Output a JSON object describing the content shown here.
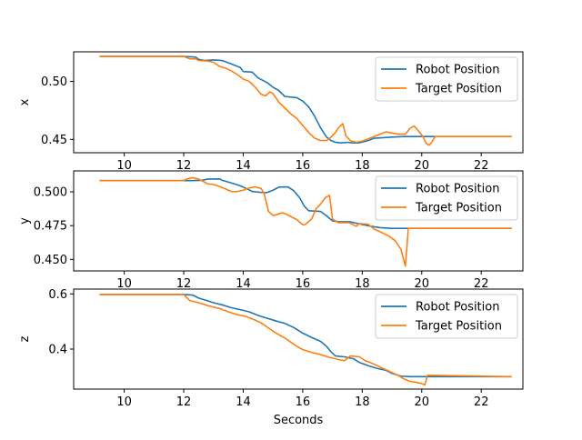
{
  "chart_data": [
    {
      "type": "line",
      "ylabel": "x",
      "xlabel": "",
      "xlim": [
        8.3,
        23.4
      ],
      "ylim": [
        0.4385,
        0.5255
      ],
      "xticks": [
        10,
        12,
        14,
        16,
        18,
        20,
        22
      ],
      "xtick_labels": [
        "10",
        "12",
        "14",
        "16",
        "18",
        "20",
        "22"
      ],
      "yticks": [
        0.45,
        0.5
      ],
      "ytick_labels": [
        "0.45",
        "0.50"
      ],
      "legend_position": "top-right",
      "series": [
        {
          "name": "Robot Position",
          "color": "#1f77b4",
          "points": [
            [
              9.2,
              0.5215
            ],
            [
              12.0,
              0.5215
            ],
            [
              12.4,
              0.521
            ],
            [
              12.5,
              0.519
            ],
            [
              12.7,
              0.518
            ],
            [
              13.0,
              0.5185
            ],
            [
              13.3,
              0.518
            ],
            [
              13.6,
              0.515
            ],
            [
              13.9,
              0.512
            ],
            [
              14.0,
              0.5085
            ],
            [
              14.3,
              0.508
            ],
            [
              14.5,
              0.503
            ],
            [
              14.8,
              0.499
            ],
            [
              15.0,
              0.495
            ],
            [
              15.2,
              0.492
            ],
            [
              15.4,
              0.487
            ],
            [
              15.8,
              0.486
            ],
            [
              16.0,
              0.483
            ],
            [
              16.2,
              0.478
            ],
            [
              16.4,
              0.47
            ],
            [
              16.6,
              0.46
            ],
            [
              16.8,
              0.452
            ],
            [
              16.95,
              0.449
            ],
            [
              17.1,
              0.4475
            ],
            [
              17.3,
              0.447
            ],
            [
              17.5,
              0.4475
            ],
            [
              17.7,
              0.447
            ],
            [
              17.9,
              0.447
            ],
            [
              18.2,
              0.449
            ],
            [
              18.4,
              0.451
            ],
            [
              18.7,
              0.4515
            ],
            [
              19.0,
              0.452
            ],
            [
              19.4,
              0.4525
            ],
            [
              23.0,
              0.4525
            ]
          ]
        },
        {
          "name": "Target Position",
          "color": "#ff7f0e",
          "points": [
            [
              9.2,
              0.5215
            ],
            [
              12.0,
              0.5215
            ],
            [
              12.2,
              0.5195
            ],
            [
              12.4,
              0.5195
            ],
            [
              12.5,
              0.518
            ],
            [
              12.8,
              0.5175
            ],
            [
              13.0,
              0.5165
            ],
            [
              13.2,
              0.513
            ],
            [
              13.4,
              0.5115
            ],
            [
              13.6,
              0.509
            ],
            [
              13.8,
              0.506
            ],
            [
              14.0,
              0.502
            ],
            [
              14.2,
              0.5
            ],
            [
              14.4,
              0.495
            ],
            [
              14.6,
              0.489
            ],
            [
              14.75,
              0.4875
            ],
            [
              14.9,
              0.491
            ],
            [
              15.0,
              0.4895
            ],
            [
              15.2,
              0.482
            ],
            [
              15.4,
              0.477
            ],
            [
              15.6,
              0.472
            ],
            [
              15.8,
              0.468
            ],
            [
              16.0,
              0.462
            ],
            [
              16.2,
              0.456
            ],
            [
              16.4,
              0.451
            ],
            [
              16.6,
              0.449
            ],
            [
              16.8,
              0.449
            ],
            [
              16.95,
              0.452
            ],
            [
              17.1,
              0.456
            ],
            [
              17.2,
              0.46
            ],
            [
              17.35,
              0.4635
            ],
            [
              17.45,
              0.453
            ],
            [
              17.6,
              0.449
            ],
            [
              17.8,
              0.4475
            ],
            [
              18.0,
              0.4485
            ],
            [
              18.2,
              0.4505
            ],
            [
              18.4,
              0.4525
            ],
            [
              18.6,
              0.4545
            ],
            [
              18.8,
              0.4565
            ],
            [
              19.0,
              0.4555
            ],
            [
              19.2,
              0.4545
            ],
            [
              19.45,
              0.4545
            ],
            [
              19.6,
              0.4595
            ],
            [
              19.75,
              0.4615
            ],
            [
              19.9,
              0.457
            ],
            [
              20.05,
              0.452
            ],
            [
              20.15,
              0.4465
            ],
            [
              20.25,
              0.445
            ],
            [
              20.35,
              0.448
            ],
            [
              20.45,
              0.4525
            ],
            [
              23.0,
              0.4525
            ]
          ]
        }
      ]
    },
    {
      "type": "line",
      "ylabel": "y",
      "xlabel": "",
      "xlim": [
        8.3,
        23.4
      ],
      "ylim": [
        0.4415,
        0.5155
      ],
      "xticks": [
        10,
        12,
        14,
        16,
        18,
        20,
        22
      ],
      "xtick_labels": [
        "10",
        "12",
        "14",
        "16",
        "18",
        "20",
        "22"
      ],
      "yticks": [
        0.45,
        0.475,
        0.5
      ],
      "ytick_labels": [
        "0.450",
        "0.475",
        "0.500"
      ],
      "legend_position": "top-right",
      "series": [
        {
          "name": "Robot Position",
          "color": "#1f77b4",
          "points": [
            [
              9.2,
              0.5083
            ],
            [
              12.0,
              0.5083
            ],
            [
              12.2,
              0.5083
            ],
            [
              12.6,
              0.5085
            ],
            [
              12.8,
              0.5094
            ],
            [
              13.2,
              0.5096
            ],
            [
              13.3,
              0.5085
            ],
            [
              13.6,
              0.5066
            ],
            [
              13.9,
              0.5045
            ],
            [
              14.1,
              0.5025
            ],
            [
              14.3,
              0.5003
            ],
            [
              14.6,
              0.4996
            ],
            [
              14.8,
              0.4995
            ],
            [
              15.0,
              0.5012
            ],
            [
              15.2,
              0.5035
            ],
            [
              15.5,
              0.5037
            ],
            [
              15.7,
              0.5008
            ],
            [
              15.9,
              0.4955
            ],
            [
              16.05,
              0.4895
            ],
            [
              16.2,
              0.486
            ],
            [
              16.6,
              0.4855
            ],
            [
              16.8,
              0.4823
            ],
            [
              17.0,
              0.4785
            ],
            [
              17.2,
              0.478
            ],
            [
              17.6,
              0.4778
            ],
            [
              18.0,
              0.4758
            ],
            [
              18.3,
              0.4745
            ],
            [
              18.6,
              0.4735
            ],
            [
              19.0,
              0.473
            ],
            [
              23.0,
              0.473
            ]
          ]
        },
        {
          "name": "Target Position",
          "color": "#ff7f0e",
          "points": [
            [
              9.2,
              0.5083
            ],
            [
              12.0,
              0.5083
            ],
            [
              12.1,
              0.5095
            ],
            [
              12.3,
              0.5105
            ],
            [
              12.5,
              0.5095
            ],
            [
              12.8,
              0.506
            ],
            [
              13.0,
              0.5055
            ],
            [
              13.2,
              0.504
            ],
            [
              13.4,
              0.5022
            ],
            [
              13.6,
              0.5002
            ],
            [
              13.8,
              0.5002
            ],
            [
              14.0,
              0.5012
            ],
            [
              14.2,
              0.5029
            ],
            [
              14.4,
              0.5037
            ],
            [
              14.6,
              0.5025
            ],
            [
              14.7,
              0.499
            ],
            [
              14.85,
              0.4855
            ],
            [
              15.0,
              0.4825
            ],
            [
              15.1,
              0.483
            ],
            [
              15.3,
              0.4845
            ],
            [
              15.4,
              0.484
            ],
            [
              15.6,
              0.4817
            ],
            [
              15.8,
              0.4795
            ],
            [
              16.0,
              0.4755
            ],
            [
              16.1,
              0.476
            ],
            [
              16.3,
              0.48
            ],
            [
              16.45,
              0.4875
            ],
            [
              16.6,
              0.491
            ],
            [
              16.75,
              0.4955
            ],
            [
              16.9,
              0.4975
            ],
            [
              17.0,
              0.48
            ],
            [
              17.2,
              0.4772
            ],
            [
              17.55,
              0.4772
            ],
            [
              17.8,
              0.4745
            ],
            [
              17.9,
              0.4765
            ],
            [
              18.2,
              0.476
            ],
            [
              18.4,
              0.4725
            ],
            [
              18.6,
              0.4705
            ],
            [
              18.9,
              0.4672
            ],
            [
              19.1,
              0.464
            ],
            [
              19.3,
              0.4575
            ],
            [
              19.45,
              0.445
            ],
            [
              19.55,
              0.473
            ],
            [
              23.0,
              0.473
            ]
          ]
        }
      ]
    },
    {
      "type": "line",
      "ylabel": "z",
      "xlabel": "Seconds",
      "xlim": [
        8.3,
        23.4
      ],
      "ylim": [
        0.255,
        0.6175
      ],
      "xticks": [
        10,
        12,
        14,
        16,
        18,
        20,
        22
      ],
      "xtick_labels": [
        "10",
        "12",
        "14",
        "16",
        "18",
        "20",
        "22"
      ],
      "yticks": [
        0.4,
        0.6
      ],
      "ytick_labels": [
        "0.4",
        "0.6"
      ],
      "legend_position": "top-right",
      "series": [
        {
          "name": "Robot Position",
          "color": "#1f77b4",
          "points": [
            [
              9.2,
              0.598
            ],
            [
              12.0,
              0.598
            ],
            [
              12.3,
              0.596
            ],
            [
              12.5,
              0.585
            ],
            [
              12.8,
              0.575
            ],
            [
              13.0,
              0.568
            ],
            [
              13.3,
              0.56
            ],
            [
              13.6,
              0.55
            ],
            [
              13.9,
              0.543
            ],
            [
              14.2,
              0.535
            ],
            [
              14.5,
              0.522
            ],
            [
              14.8,
              0.512
            ],
            [
              15.1,
              0.502
            ],
            [
              15.4,
              0.493
            ],
            [
              15.7,
              0.478
            ],
            [
              16.0,
              0.458
            ],
            [
              16.3,
              0.442
            ],
            [
              16.6,
              0.428
            ],
            [
              16.8,
              0.41
            ],
            [
              16.95,
              0.39
            ],
            [
              17.1,
              0.375
            ],
            [
              17.4,
              0.372
            ],
            [
              17.7,
              0.365
            ],
            [
              17.9,
              0.352
            ],
            [
              18.2,
              0.34
            ],
            [
              18.5,
              0.33
            ],
            [
              18.8,
              0.323
            ],
            [
              19.0,
              0.312
            ],
            [
              19.3,
              0.302
            ],
            [
              19.6,
              0.3
            ],
            [
              23.0,
              0.3
            ]
          ]
        },
        {
          "name": "Target Position",
          "color": "#ff7f0e",
          "points": [
            [
              9.2,
              0.598
            ],
            [
              12.0,
              0.598
            ],
            [
              12.2,
              0.576
            ],
            [
              12.5,
              0.568
            ],
            [
              12.8,
              0.558
            ],
            [
              13.0,
              0.552
            ],
            [
              13.2,
              0.547
            ],
            [
              13.5,
              0.535
            ],
            [
              13.8,
              0.525
            ],
            [
              14.1,
              0.518
            ],
            [
              14.4,
              0.505
            ],
            [
              14.6,
              0.495
            ],
            [
              14.8,
              0.48
            ],
            [
              15.0,
              0.465
            ],
            [
              15.2,
              0.452
            ],
            [
              15.4,
              0.44
            ],
            [
              15.6,
              0.425
            ],
            [
              15.8,
              0.41
            ],
            [
              16.0,
              0.398
            ],
            [
              16.3,
              0.388
            ],
            [
              16.6,
              0.38
            ],
            [
              16.9,
              0.37
            ],
            [
              17.2,
              0.362
            ],
            [
              17.4,
              0.358
            ],
            [
              17.6,
              0.375
            ],
            [
              17.9,
              0.372
            ],
            [
              18.1,
              0.358
            ],
            [
              18.3,
              0.35
            ],
            [
              18.6,
              0.335
            ],
            [
              18.9,
              0.32
            ],
            [
              19.2,
              0.305
            ],
            [
              19.4,
              0.292
            ],
            [
              19.6,
              0.283
            ],
            [
              19.8,
              0.28
            ],
            [
              20.0,
              0.275
            ],
            [
              20.1,
              0.27
            ],
            [
              20.2,
              0.305
            ],
            [
              23.0,
              0.3
            ]
          ]
        }
      ]
    }
  ]
}
